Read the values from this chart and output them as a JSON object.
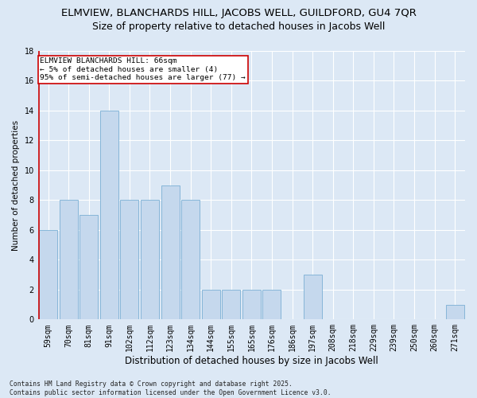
{
  "title1": "ELMVIEW, BLANCHARDS HILL, JACOBS WELL, GUILDFORD, GU4 7QR",
  "title2": "Size of property relative to detached houses in Jacobs Well",
  "xlabel": "Distribution of detached houses by size in Jacobs Well",
  "ylabel": "Number of detached properties",
  "categories": [
    "59sqm",
    "70sqm",
    "81sqm",
    "91sqm",
    "102sqm",
    "112sqm",
    "123sqm",
    "134sqm",
    "144sqm",
    "155sqm",
    "165sqm",
    "176sqm",
    "186sqm",
    "197sqm",
    "208sqm",
    "218sqm",
    "229sqm",
    "239sqm",
    "250sqm",
    "260sqm",
    "271sqm"
  ],
  "values": [
    6,
    8,
    7,
    14,
    8,
    8,
    9,
    8,
    2,
    2,
    2,
    2,
    0,
    3,
    0,
    0,
    0,
    0,
    0,
    0,
    1
  ],
  "bar_color": "#c5d8ed",
  "bar_edge_color": "#7aafd4",
  "annotation_text": "ELMVIEW BLANCHARDS HILL: 66sqm\n← 5% of detached houses are smaller (4)\n95% of semi-detached houses are larger (77) →",
  "annotation_box_color": "#ffffff",
  "annotation_box_edge_color": "#cc0000",
  "vline_color": "#cc0000",
  "ylim": [
    0,
    18
  ],
  "yticks": [
    0,
    2,
    4,
    6,
    8,
    10,
    12,
    14,
    16,
    18
  ],
  "background_color": "#dce8f5",
  "grid_color": "#ffffff",
  "footer": "Contains HM Land Registry data © Crown copyright and database right 2025.\nContains public sector information licensed under the Open Government Licence v3.0.",
  "title1_fontsize": 9.5,
  "title2_fontsize": 9,
  "xlabel_fontsize": 8.5,
  "ylabel_fontsize": 7.5,
  "tick_fontsize": 7,
  "annotation_fontsize": 6.8,
  "footer_fontsize": 5.8
}
